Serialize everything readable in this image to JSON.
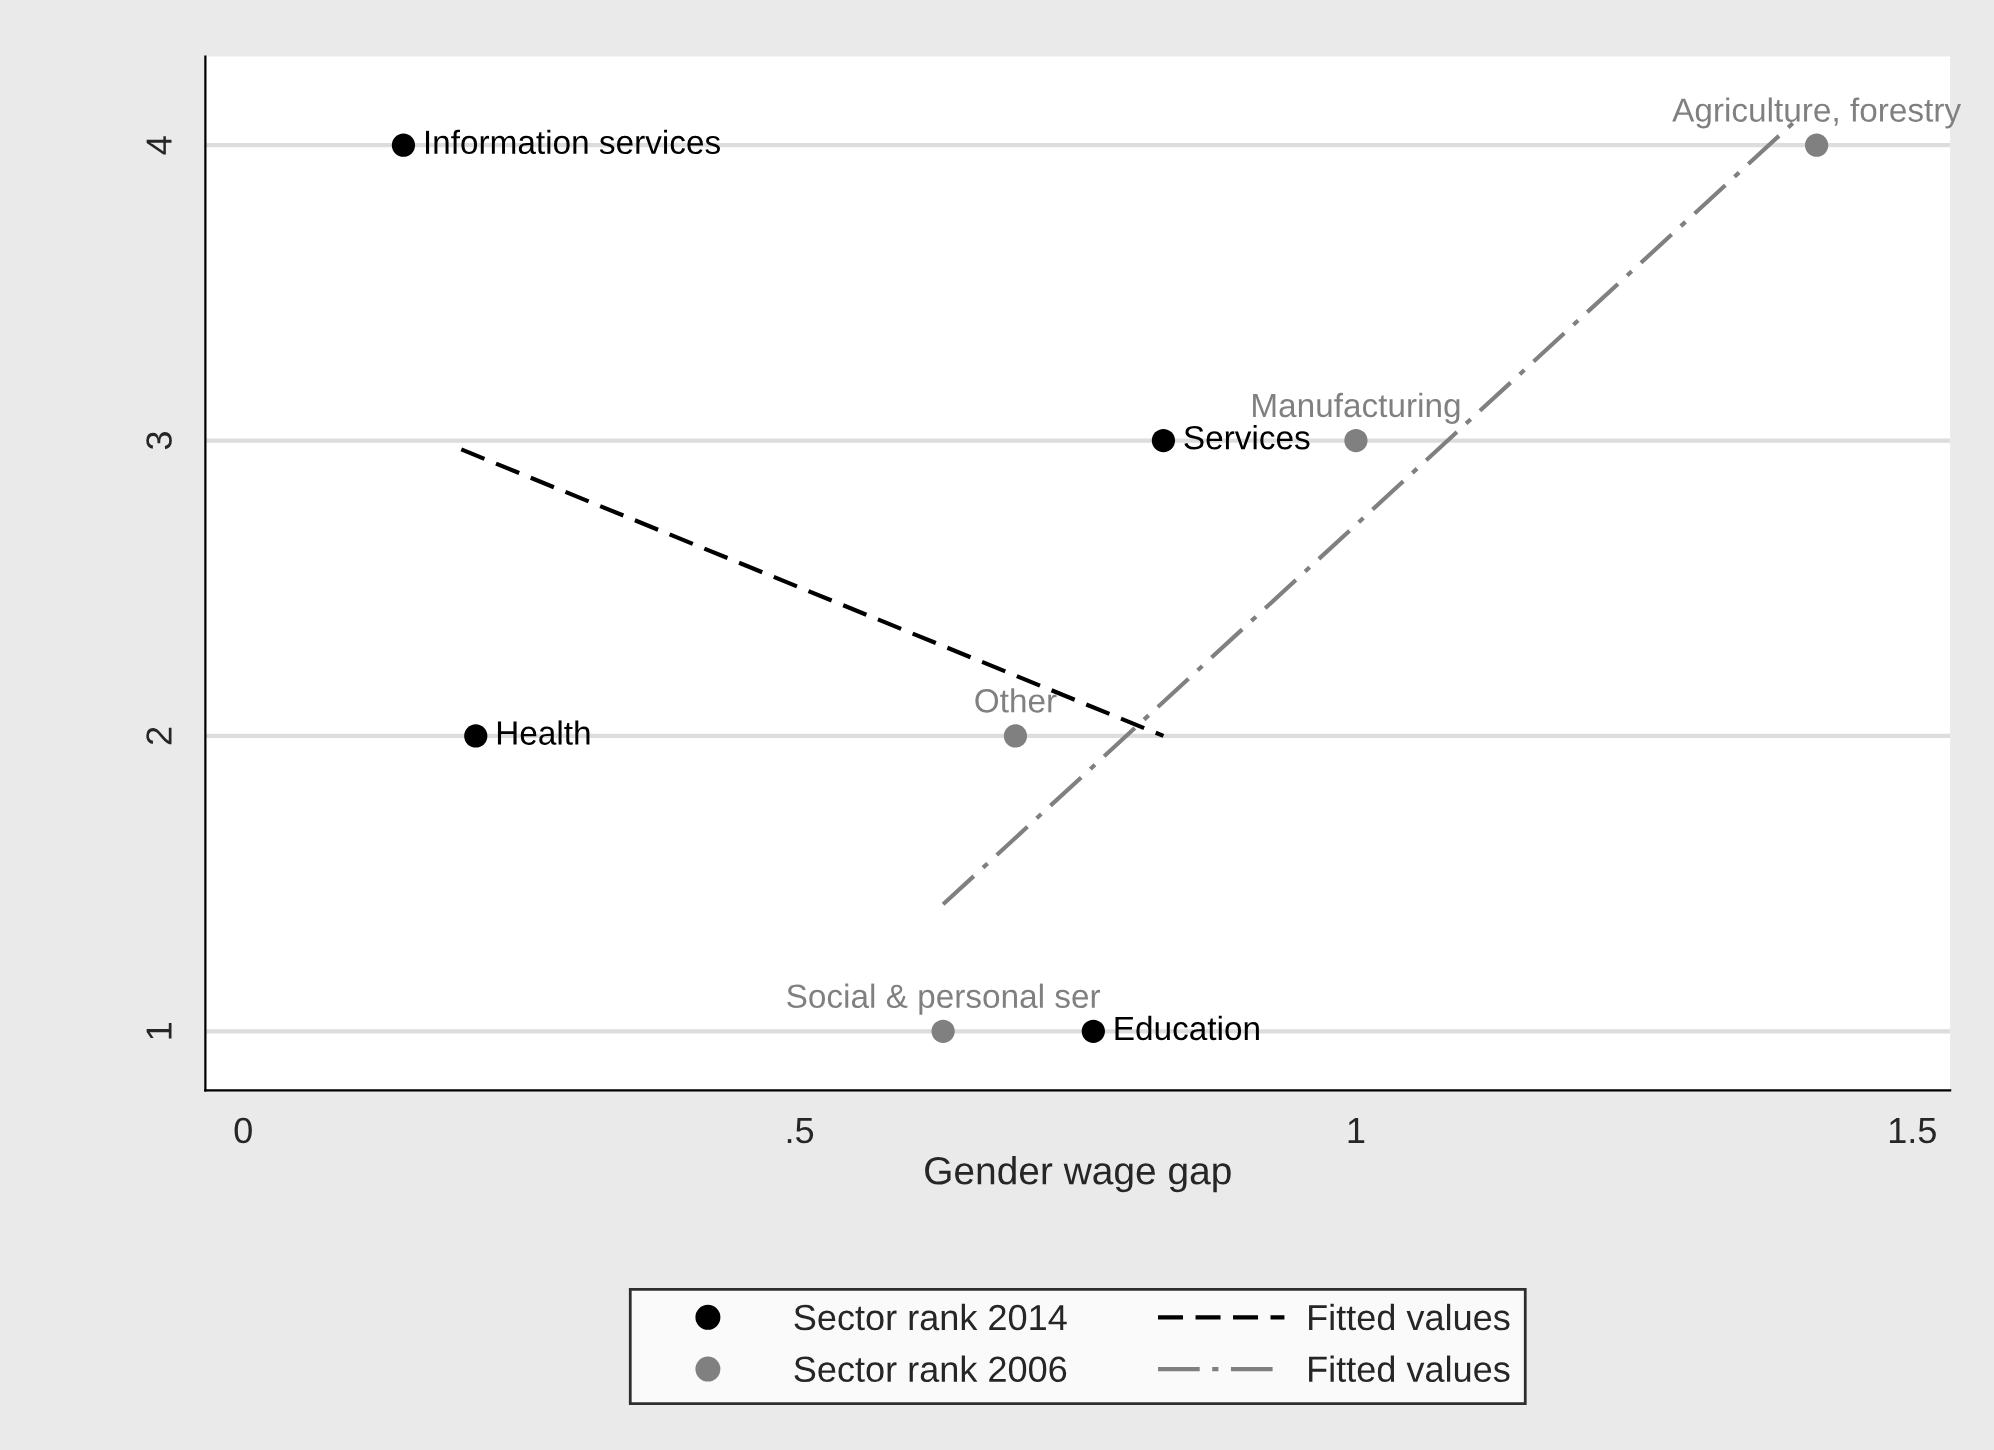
{
  "chart_data": {
    "type": "scatter",
    "xlabel": "Gender wage gap",
    "series": [
      {
        "name": "Sector rank 2014",
        "color": "#000000",
        "marker": "circle",
        "x": [
          0.144,
          0.209,
          0.827,
          0.764
        ],
        "values": [
          4,
          2,
          3,
          1
        ],
        "value_labels": [
          "Information services",
          "Health",
          "Services",
          "Education"
        ]
      },
      {
        "name": "Sector rank 2006",
        "color": "#808080",
        "marker": "circle",
        "x": [
          0.629,
          0.694,
          1.0,
          1.414
        ],
        "values": [
          1,
          2,
          3,
          4
        ],
        "value_labels": [
          "Social & personal ser",
          "Other",
          "Manufacturing",
          "Agriculture, forestry"
        ]
      },
      {
        "name": "Fitted values",
        "type": "line",
        "color": "#000000",
        "line_style": "dashed",
        "x": [
          0.196,
          0.827
        ],
        "values": [
          2.97,
          2.0
        ]
      },
      {
        "name": "Fitted values",
        "type": "line",
        "color": "#808080",
        "line_style": "dashdot",
        "x": [
          0.629,
          1.4
        ],
        "values": [
          1.43,
          4.1
        ]
      }
    ],
    "xlim": [
      -0.034,
      1.534
    ],
    "ylim": [
      0.8,
      4.3
    ],
    "xticks": [
      0,
      {
        "value": 0.5,
        "label": ".5"
      },
      1,
      1.5
    ],
    "yticks": [
      1,
      2,
      3,
      4
    ],
    "grid": "y",
    "legend": "bottom"
  }
}
